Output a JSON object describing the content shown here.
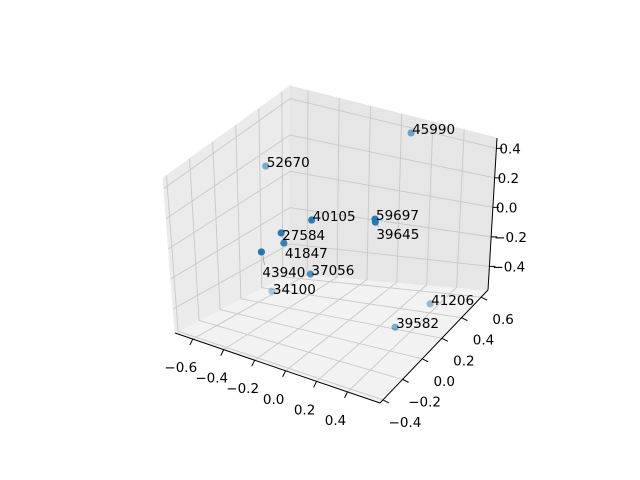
{
  "chart_data": {
    "type": "scatter3d",
    "title": "",
    "xlabel": "",
    "ylabel": "",
    "zlabel": "",
    "xlim": [
      -0.715,
      0.61
    ],
    "ylim": [
      -0.43,
      0.67
    ],
    "zlim": [
      -0.56,
      0.47
    ],
    "grid": true,
    "view": {
      "elev": 30,
      "azim": -60
    },
    "marker_color": "#1f77b4",
    "depth_shading": true,
    "x_ticks": [
      -0.6,
      -0.4,
      -0.2,
      0.0,
      0.2,
      0.4
    ],
    "x_tick_labels": [
      "−0.6",
      "−0.4",
      "−0.2",
      "0.0",
      "0.2",
      "0.4"
    ],
    "y_ticks": [
      -0.4,
      -0.2,
      0.0,
      0.2,
      0.4,
      0.6
    ],
    "y_tick_labels": [
      "−0.4",
      "−0.2",
      "0.0",
      "0.2",
      "0.4",
      "0.6"
    ],
    "z_ticks": [
      -0.4,
      -0.2,
      0.0,
      0.2,
      0.4
    ],
    "z_tick_labels": [
      "−0.4",
      "−0.2",
      "0.0",
      "0.2",
      "0.4"
    ],
    "points": [
      {
        "label": "45990",
        "x": 0.1,
        "y": 0.615,
        "z": 0.414
      },
      {
        "label": "52670",
        "x": -0.633,
        "y": 0.34,
        "z": 0.186
      },
      {
        "label": "40105",
        "x": -0.039,
        "y": -0.1,
        "z": 0.288
      },
      {
        "label": "59697",
        "x": 0.281,
        "y": 0.01,
        "z": 0.344
      },
      {
        "label": "39645",
        "x": 0.29,
        "y": 0.0,
        "z": 0.335
      },
      {
        "label": "27584",
        "x": -0.155,
        "y": -0.21,
        "z": 0.224
      },
      {
        "label": "41847",
        "x": -0.178,
        "y": -0.155,
        "z": 0.11
      },
      {
        "label": "43940",
        "x": -0.206,
        "y": -0.32,
        "z": 0.141
      },
      {
        "label": "37056",
        "x": -0.088,
        "y": -0.045,
        "z": -0.137
      },
      {
        "label": "34100",
        "x": -0.606,
        "y": 0.34,
        "z": -0.545
      },
      {
        "label": "41206",
        "x": 0.368,
        "y": 0.45,
        "z": -0.535
      },
      {
        "label": "39582",
        "x": 0.295,
        "y": 0.21,
        "z": -0.555
      }
    ]
  }
}
